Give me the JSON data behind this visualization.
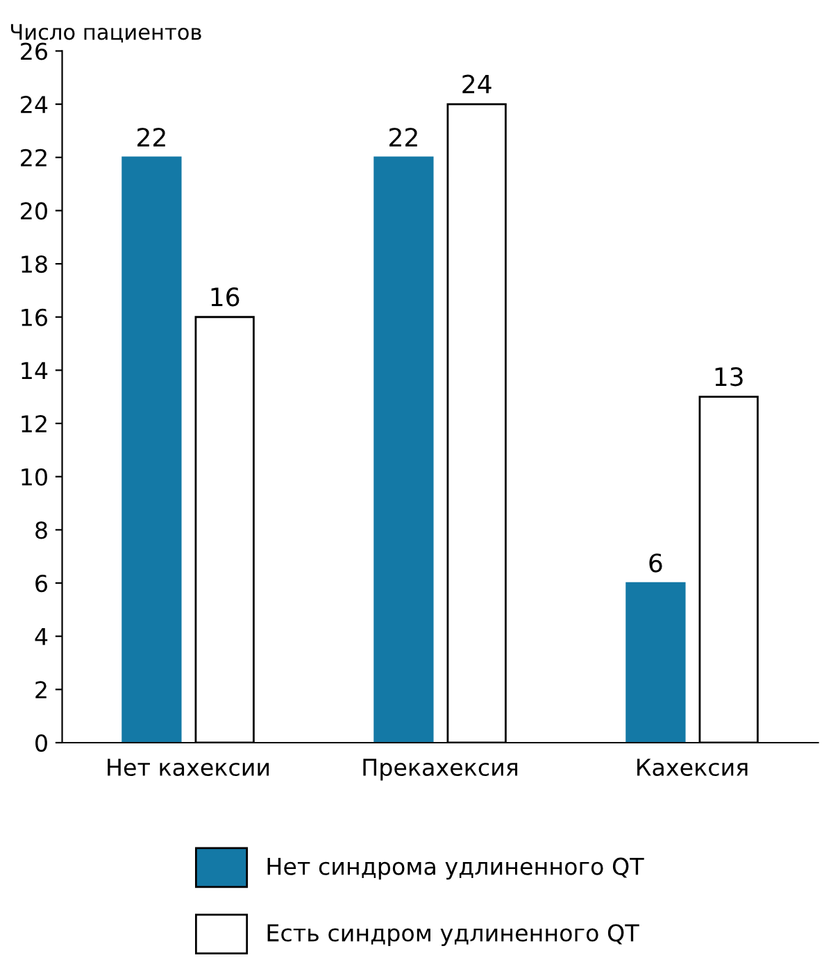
{
  "chart_data": {
    "type": "bar",
    "ylabel": "Число пациентов",
    "categories": [
      "Нет кахексии",
      "Прекахексия",
      "Кахексия"
    ],
    "series": [
      {
        "name": "Нет синдрома удлиненного QT",
        "color": "#1479a6",
        "values": [
          22,
          22,
          6
        ]
      },
      {
        "name": "Есть синдром удлиненного QT",
        "color": "#ffffff",
        "values": [
          16,
          24,
          13
        ]
      }
    ],
    "ylim": [
      0,
      26
    ],
    "yticks": [
      0,
      2,
      4,
      6,
      8,
      10,
      12,
      14,
      16,
      18,
      20,
      22,
      24,
      26
    ],
    "grid": false,
    "legend": "bottom",
    "data_labels": true
  }
}
